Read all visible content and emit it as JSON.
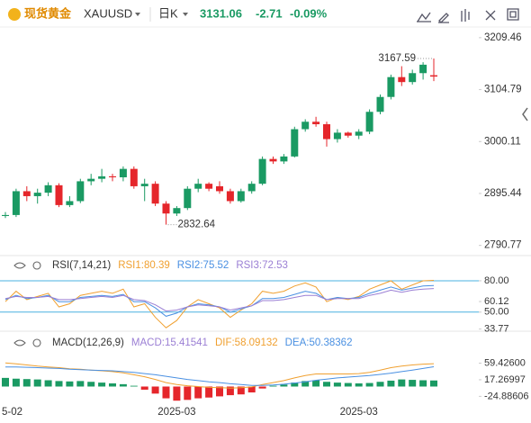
{
  "header": {
    "name": "现货黄金",
    "symbol": "XAUUSD",
    "period": "日K",
    "price": 3131.06,
    "change": -2.71,
    "change_pct": "-0.09%"
  },
  "chart_data": [
    {
      "type": "candlestick",
      "categories": [
        "5-02",
        null,
        null,
        null,
        null,
        null,
        null,
        null,
        null,
        null,
        null,
        null,
        null,
        null,
        null,
        null,
        "2025-03",
        null,
        null,
        null,
        null,
        null,
        null,
        null,
        null,
        null,
        null,
        null,
        null,
        null,
        null,
        null,
        null,
        "2025-03",
        null,
        null,
        null,
        null,
        null,
        null,
        null
      ],
      "open": [
        2850,
        2852,
        2900,
        2890,
        2897,
        2912,
        2872,
        2880,
        2920,
        2925,
        2930,
        2928,
        2945,
        2910,
        2915,
        2875,
        2855,
        2866,
        2905,
        2915,
        2910,
        2900,
        2880,
        2900,
        2915,
        2965,
        2960,
        2970,
        3025,
        3040,
        3035,
        3005,
        3018,
        3012,
        3020,
        3060,
        3090,
        3130,
        3120,
        3138,
        3133.77
      ],
      "high": [
        2858,
        2905,
        2910,
        2905,
        2918,
        2916,
        2890,
        2925,
        2935,
        2945,
        2935,
        2950,
        2950,
        2925,
        2920,
        2880,
        2870,
        2910,
        2925,
        2918,
        2920,
        2905,
        2905,
        2920,
        2970,
        2970,
        2975,
        3030,
        3045,
        3050,
        3040,
        3025,
        3020,
        3025,
        3065,
        3095,
        3135,
        3152,
        3145,
        3160,
        3167.59
      ],
      "low": [
        2846,
        2848,
        2880,
        2875,
        2890,
        2868,
        2868,
        2876,
        2912,
        2918,
        2920,
        2920,
        2905,
        2880,
        2870,
        2832.64,
        2850,
        2862,
        2898,
        2900,
        2895,
        2875,
        2877,
        2895,
        2912,
        2955,
        2955,
        2968,
        3020,
        3030,
        2990,
        2998,
        3008,
        3005,
        3015,
        3055,
        3085,
        3112,
        3115,
        3125,
        3122
      ],
      "close": [
        2852,
        2900,
        2890,
        2897,
        2912,
        2872,
        2880,
        2920,
        2925,
        2930,
        2928,
        2945,
        2910,
        2915,
        2875,
        2855,
        2866,
        2905,
        2915,
        2905,
        2900,
        2880,
        2900,
        2915,
        2965,
        2960,
        2970,
        3025,
        3040,
        3035,
        3005,
        3018,
        3012,
        3020,
        3060,
        3090,
        3130,
        3120,
        3138,
        3155,
        3131.06
      ],
      "up_color": "#1a9a63",
      "down_color": "#e5262b",
      "ylim": [
        2772,
        3231
      ],
      "yticks": [
        3209.46,
        3104.79,
        3000.11,
        2895.44,
        2790.77
      ]
    },
    {
      "type": "line",
      "title": "RSI(7,14,21)",
      "label_separator": ":",
      "series": [
        {
          "name": "RSI1",
          "color": "#f0a030",
          "values": [
            60,
            70,
            62,
            65,
            68,
            55,
            58,
            66,
            68,
            70,
            68,
            72,
            55,
            58,
            45,
            35,
            42,
            55,
            62,
            58,
            54,
            45,
            52,
            58,
            70,
            68,
            70,
            75,
            78,
            74,
            60,
            64,
            62,
            65,
            72,
            76,
            80,
            72,
            76,
            80,
            80.39
          ]
        },
        {
          "name": "RSI2",
          "color": "#4a90e2",
          "values": [
            62,
            66,
            63,
            64,
            66,
            60,
            60,
            64,
            65,
            66,
            65,
            67,
            60,
            60,
            54,
            46,
            49,
            55,
            58,
            57,
            55,
            50,
            53,
            56,
            63,
            63,
            64,
            67,
            70,
            68,
            62,
            64,
            63,
            64,
            68,
            71,
            74,
            71,
            73,
            75,
            75.52
          ]
        },
        {
          "name": "RSI3",
          "color": "#9b7fd4",
          "values": [
            63,
            65,
            64,
            64,
            65,
            62,
            62,
            63,
            64,
            65,
            64,
            66,
            62,
            61,
            57,
            51,
            52,
            55,
            57,
            56,
            55,
            52,
            54,
            56,
            61,
            61,
            62,
            64,
            66,
            66,
            62,
            63,
            63,
            63,
            66,
            68,
            71,
            69,
            71,
            72,
            72.53
          ]
        }
      ],
      "ref_lines": [
        80,
        50
      ],
      "ref_color": "#4ab0e0",
      "ylim": [
        30,
        86
      ],
      "yticks": [
        {
          "value": 80,
          "label": "80.00"
        },
        60.12,
        {
          "value": 50,
          "label": "50.00"
        },
        33.77
      ]
    },
    {
      "type": "macd",
      "title": "MACD(12,26,9)",
      "label_separator": ":",
      "histogram": {
        "name": "MACD",
        "color": "#9b7fd4",
        "up_color": "#1a9a63",
        "down_color": "#e5262b",
        "values": [
          22,
          20,
          19,
          18,
          16,
          14,
          13,
          14,
          12,
          10,
          8,
          6,
          2,
          -8,
          -18,
          -30,
          -36,
          -34,
          -30,
          -28,
          -25,
          -22,
          -20,
          -15,
          -5,
          2,
          5,
          10,
          14,
          16,
          12,
          10,
          9,
          8,
          9,
          12,
          15,
          18,
          17,
          16,
          15.41541
        ]
      },
      "series": [
        {
          "name": "DIF",
          "color": "#f0a030",
          "values": [
            60,
            58,
            55,
            52,
            50,
            48,
            45,
            44,
            42,
            40,
            38,
            35,
            30,
            25,
            18,
            10,
            5,
            2,
            0,
            -2,
            -3,
            -4,
            -3,
            -1,
            5,
            10,
            15,
            22,
            28,
            32,
            32,
            32,
            32,
            33,
            36,
            42,
            48,
            52,
            55,
            57,
            58.09132
          ]
        },
        {
          "name": "DEA",
          "color": "#4a90e2",
          "values": [
            50,
            50,
            49,
            48,
            47,
            46,
            44,
            43,
            42,
            41,
            40,
            38,
            36,
            33,
            30,
            26,
            22,
            18,
            15,
            12,
            10,
            7,
            5,
            3,
            3,
            4,
            6,
            9,
            12,
            16,
            19,
            22,
            24,
            26,
            28,
            31,
            34,
            38,
            42,
            46,
            50.38362
          ]
        }
      ],
      "ylim": [
        -47,
        79
      ],
      "yticks": [
        {
          "value": 59.426,
          "label": "59.42600"
        },
        17.26997,
        -24.88606
      ]
    }
  ]
}
